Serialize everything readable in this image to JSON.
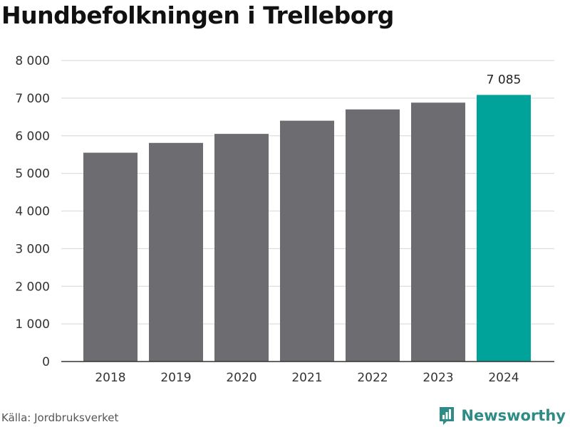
{
  "title": "Hundbefolkningen i Trelleborg",
  "source": "Källa: Jordbruksverket",
  "brand": {
    "name": "Newsworthy",
    "icon": "newsworthy-logo-icon",
    "color": "#2f8b86"
  },
  "chart_data": {
    "type": "bar",
    "categories": [
      "2018",
      "2019",
      "2020",
      "2021",
      "2022",
      "2023",
      "2024"
    ],
    "values": [
      5550,
      5810,
      6050,
      6400,
      6700,
      6880,
      7085
    ],
    "ylim": [
      0,
      8000
    ],
    "yticks": [
      0,
      1000,
      2000,
      3000,
      4000,
      5000,
      6000,
      7000,
      8000
    ],
    "ytick_labels": [
      "0",
      "1 000",
      "2 000",
      "3 000",
      "4 000",
      "5 000",
      "6 000",
      "7 000",
      "8 000"
    ],
    "data_labels": [
      {
        "category": "2024",
        "text": "7 085"
      }
    ],
    "colors": {
      "default": "#6d6c71",
      "highlight": "#00a39a",
      "highlight_category": "2024"
    },
    "grid": true,
    "legend": "none"
  }
}
